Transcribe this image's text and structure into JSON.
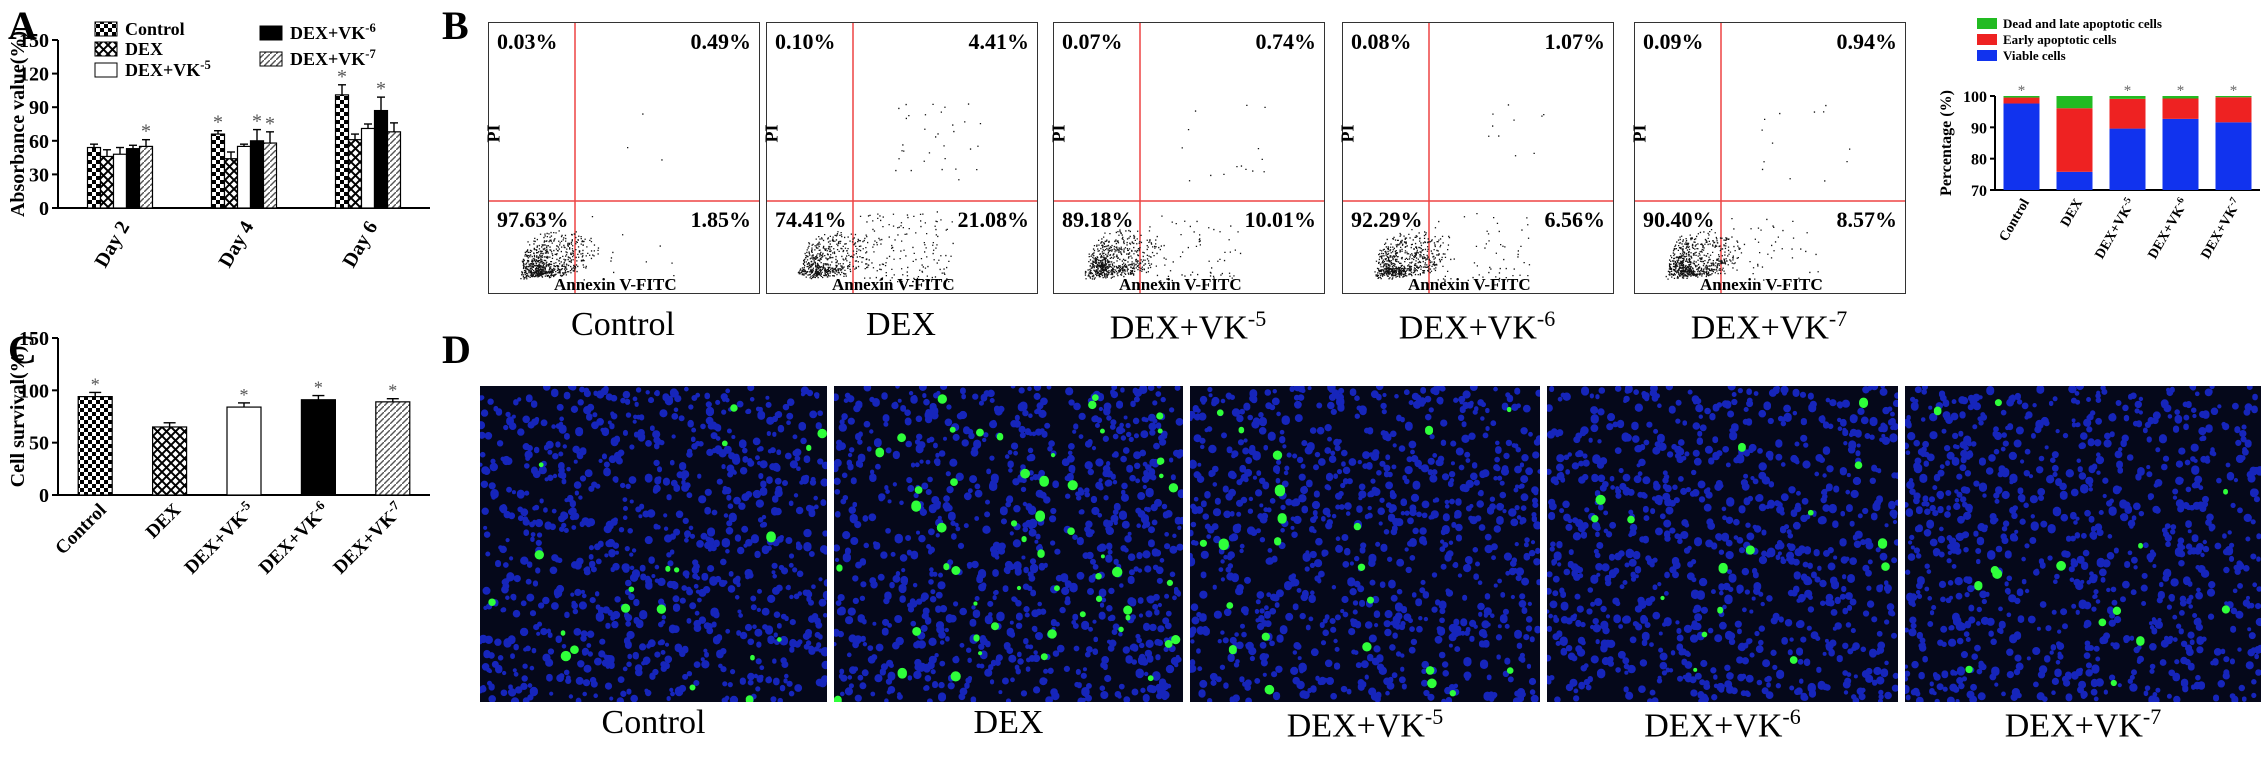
{
  "panels": {
    "A": "A",
    "B": "B",
    "C": "C",
    "D": "D"
  },
  "chart_A": {
    "type": "bar",
    "ylabel": "Absorbance value(%)",
    "yticks": [
      "0",
      "30",
      "60",
      "90",
      "120",
      "150"
    ],
    "ylim": [
      0,
      150
    ],
    "categories": [
      "Day 2",
      "Day 4",
      "Day 6"
    ],
    "legend": [
      "Control",
      "DEX",
      "DEX+VK-5",
      "DEX+VK-6",
      "DEX+VK-7"
    ],
    "legend_display": [
      {
        "base": "Control",
        "sup": ""
      },
      {
        "base": "DEX",
        "sup": ""
      },
      {
        "base": "DEX+VK",
        "sup": "-5"
      },
      {
        "base": "DEX+VK",
        "sup": "-6"
      },
      {
        "base": "DEX+VK",
        "sup": "-7"
      }
    ],
    "series": [
      {
        "name": "Control",
        "values": [
          54,
          66,
          101
        ],
        "err": [
          3,
          3,
          9
        ],
        "star": [
          false,
          true,
          true
        ]
      },
      {
        "name": "DEX",
        "values": [
          46,
          44,
          61
        ],
        "err": [
          6,
          6,
          5
        ],
        "star": [
          false,
          false,
          false
        ]
      },
      {
        "name": "DEX+VK-5",
        "values": [
          48,
          55,
          71
        ],
        "err": [
          6,
          2,
          4
        ],
        "star": [
          false,
          false,
          false
        ]
      },
      {
        "name": "DEX+VK-6",
        "values": [
          53,
          60,
          87
        ],
        "err": [
          3,
          10,
          12
        ],
        "star": [
          false,
          true,
          true
        ]
      },
      {
        "name": "DEX+VK-7",
        "values": [
          55,
          58,
          68
        ],
        "err": [
          6,
          10,
          8
        ],
        "star": [
          true,
          true,
          false
        ]
      }
    ],
    "star_symbol": "*"
  },
  "flow_B": [
    {
      "ul": "0.03%",
      "ur": "0.49%",
      "ll": "97.63%",
      "lr": "1.85%",
      "caption_base": "Control",
      "caption_sup": ""
    },
    {
      "ul": "0.10%",
      "ur": "4.41%",
      "ll": "74.41%",
      "lr": "21.08%",
      "caption_base": "DEX",
      "caption_sup": ""
    },
    {
      "ul": "0.07%",
      "ur": "0.74%",
      "ll": "89.18%",
      "lr": "10.01%",
      "caption_base": "DEX+VK",
      "caption_sup": "-5"
    },
    {
      "ul": "0.08%",
      "ur": "1.07%",
      "ll": "92.29%",
      "lr": "6.56%",
      "caption_base": "DEX+VK",
      "caption_sup": "-6"
    },
    {
      "ul": "0.09%",
      "ur": "0.94%",
      "ll": "90.40%",
      "lr": "8.57%",
      "caption_base": "DEX+VK",
      "caption_sup": "-7"
    }
  ],
  "flow_axis": {
    "x": "Annexin V-FITC",
    "y": "PI"
  },
  "chart_B_stack": {
    "type": "bar",
    "ylabel": "Percentage (%)",
    "yticks": [
      "70",
      "80",
      "90",
      "100"
    ],
    "ylim": [
      70,
      100
    ],
    "categories": [
      "Control",
      "DEX",
      "DEX+VK-5",
      "DEX+VK-6",
      "DEX+VK-7"
    ],
    "category_display": [
      {
        "base": "Control",
        "sup": ""
      },
      {
        "base": "DEX",
        "sup": ""
      },
      {
        "base": "DEX+VK",
        "sup": "-5"
      },
      {
        "base": "DEX+VK",
        "sup": "-6"
      },
      {
        "base": "DEX+VK",
        "sup": "-7"
      }
    ],
    "legend": [
      "Dead and late apoptotic cells",
      "Early apoptotic cells",
      "Viable cells"
    ],
    "colors": [
      "#22bb22",
      "#ee2222",
      "#1133ee"
    ],
    "series": [
      {
        "name": "Viable cells",
        "values": [
          97.6,
          75.8,
          89.6,
          92.7,
          91.6
        ]
      },
      {
        "name": "Early apoptotic cells",
        "values": [
          1.9,
          20.3,
          9.5,
          6.5,
          8.0
        ]
      },
      {
        "name": "Dead and late apoptotic cells",
        "values": [
          0.5,
          3.9,
          0.9,
          0.8,
          0.4
        ]
      }
    ],
    "star": [
      true,
      false,
      true,
      true,
      true
    ],
    "star_symbol": "*"
  },
  "chart_C": {
    "type": "bar",
    "ylabel": "Cell survival(%)",
    "yticks": [
      "0",
      "50",
      "100",
      "150"
    ],
    "ylim": [
      0,
      150
    ],
    "categories": [
      "Control",
      "DEX",
      "DEX+VK-5",
      "DEX+VK-6",
      "DEX+VK-7"
    ],
    "category_display": [
      {
        "base": "Control",
        "sup": ""
      },
      {
        "base": "DEX",
        "sup": ""
      },
      {
        "base": "DEX+VK",
        "sup": "-5"
      },
      {
        "base": "DEX+VK",
        "sup": "-6"
      },
      {
        "base": "DEX+VK",
        "sup": "-7"
      }
    ],
    "values": [
      94,
      65,
      84,
      91,
      89
    ],
    "err": [
      4,
      4,
      4,
      4,
      3
    ],
    "star": [
      true,
      false,
      true,
      true,
      true
    ],
    "star_symbol": "*"
  },
  "micro_D": [
    {
      "caption_base": "Control",
      "caption_sup": "",
      "green": 20
    },
    {
      "caption_base": "DEX",
      "caption_sup": "",
      "green": 55
    },
    {
      "caption_base": "DEX+VK",
      "caption_sup": "-5",
      "green": 22
    },
    {
      "caption_base": "DEX+VK",
      "caption_sup": "-6",
      "green": 16
    },
    {
      "caption_base": "DEX+VK",
      "caption_sup": "-7",
      "green": 14
    }
  ]
}
